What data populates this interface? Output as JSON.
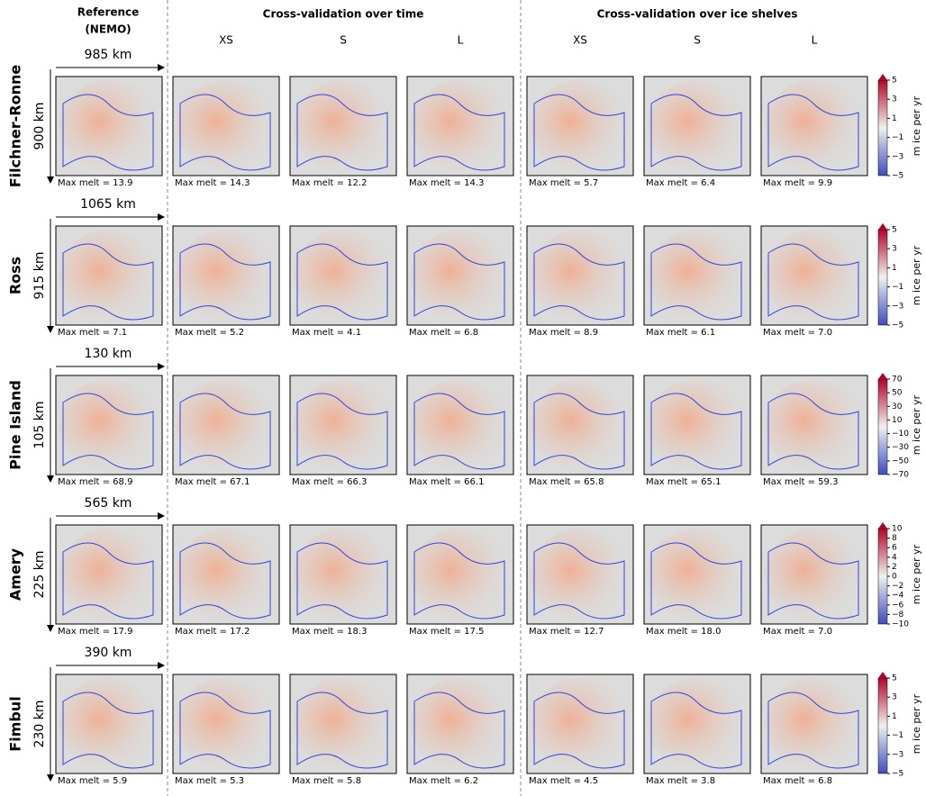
{
  "header": {
    "reference": "Reference",
    "reference_sub": "(NEMO)",
    "groups": [
      {
        "title": "Cross-validation over time",
        "columns": [
          "XS",
          "S",
          "L"
        ]
      },
      {
        "title": "Cross-validation over ice shelves",
        "columns": [
          "XS",
          "S",
          "L"
        ]
      }
    ]
  },
  "colorbar_label": "m ice per yr",
  "rows": [
    {
      "name": "Filchner-Ronne",
      "width": "985 km",
      "height": "900 km",
      "max_melt": [
        "Max melt = 13.9",
        "Max melt = 14.3",
        "Max melt = 12.2",
        "Max melt = 14.3",
        "Max melt = 5.7",
        "Max melt = 6.4",
        "Max melt = 9.9"
      ],
      "colorbar": {
        "lim": [
          -5,
          5
        ],
        "ticks": [
          {
            "value": -5,
            "label": "−5"
          },
          {
            "value": -3,
            "label": "−3"
          },
          {
            "value": -1,
            "label": "−1"
          },
          1,
          3,
          5
        ]
      }
    },
    {
      "name": "Ross",
      "width": "1065 km",
      "height": "915 km",
      "max_melt": [
        "Max melt = 7.1",
        "Max melt = 5.2",
        "Max melt = 4.1",
        "Max melt = 6.8",
        "Max melt = 8.9",
        "Max melt = 6.1",
        "Max melt = 7.0"
      ],
      "colorbar": {
        "lim": [
          -5,
          5
        ],
        "ticks": [
          {
            "value": -5,
            "label": "−5"
          },
          {
            "value": -3,
            "label": "−3"
          },
          {
            "value": -1,
            "label": "−1"
          },
          1,
          3,
          5
        ]
      }
    },
    {
      "name": "Pine Island",
      "width": "130 km",
      "height": "105 km",
      "max_melt": [
        "Max melt = 68.9",
        "Max melt = 67.1",
        "Max melt = 66.3",
        "Max melt = 66.1",
        "Max melt = 65.8",
        "Max melt = 65.1",
        "Max melt = 59.3"
      ],
      "colorbar": {
        "lim": [
          -70,
          70
        ],
        "ticks": [
          {
            "value": -70,
            "label": "−70"
          },
          {
            "value": -50,
            "label": "−50"
          },
          {
            "value": -30,
            "label": "−30"
          },
          {
            "value": -10,
            "label": "−10"
          },
          10,
          30,
          50,
          70
        ]
      }
    },
    {
      "name": "Amery",
      "width": "565 km",
      "height": "225 km",
      "max_melt": [
        "Max melt = 17.9",
        "Max melt = 17.2",
        "Max melt = 18.3",
        "Max melt = 17.5",
        "Max melt = 12.7",
        "Max melt = 18.0",
        "Max melt = 7.0"
      ],
      "colorbar": {
        "lim": [
          -10,
          10
        ],
        "ticks": [
          {
            "value": -10,
            "label": "−10"
          },
          {
            "value": -8,
            "label": "−8"
          },
          {
            "value": -6,
            "label": "−6"
          },
          {
            "value": -4,
            "label": "−4"
          },
          {
            "value": -2,
            "label": "−2"
          },
          0,
          2,
          4,
          6,
          8,
          10
        ]
      }
    },
    {
      "name": "Fimbul",
      "width": "390 km",
      "height": "230 km",
      "max_melt": [
        "Max melt = 5.9",
        "Max melt = 5.3",
        "Max melt = 5.8",
        "Max melt = 6.2",
        "Max melt = 4.5",
        "Max melt = 3.8",
        "Max melt = 6.8"
      ],
      "colorbar": {
        "lim": [
          -5,
          5
        ],
        "ticks": [
          {
            "value": -5,
            "label": "−5"
          },
          {
            "value": -3,
            "label": "−3"
          },
          {
            "value": -1,
            "label": "−1"
          },
          1,
          3,
          5
        ]
      }
    }
  ]
}
